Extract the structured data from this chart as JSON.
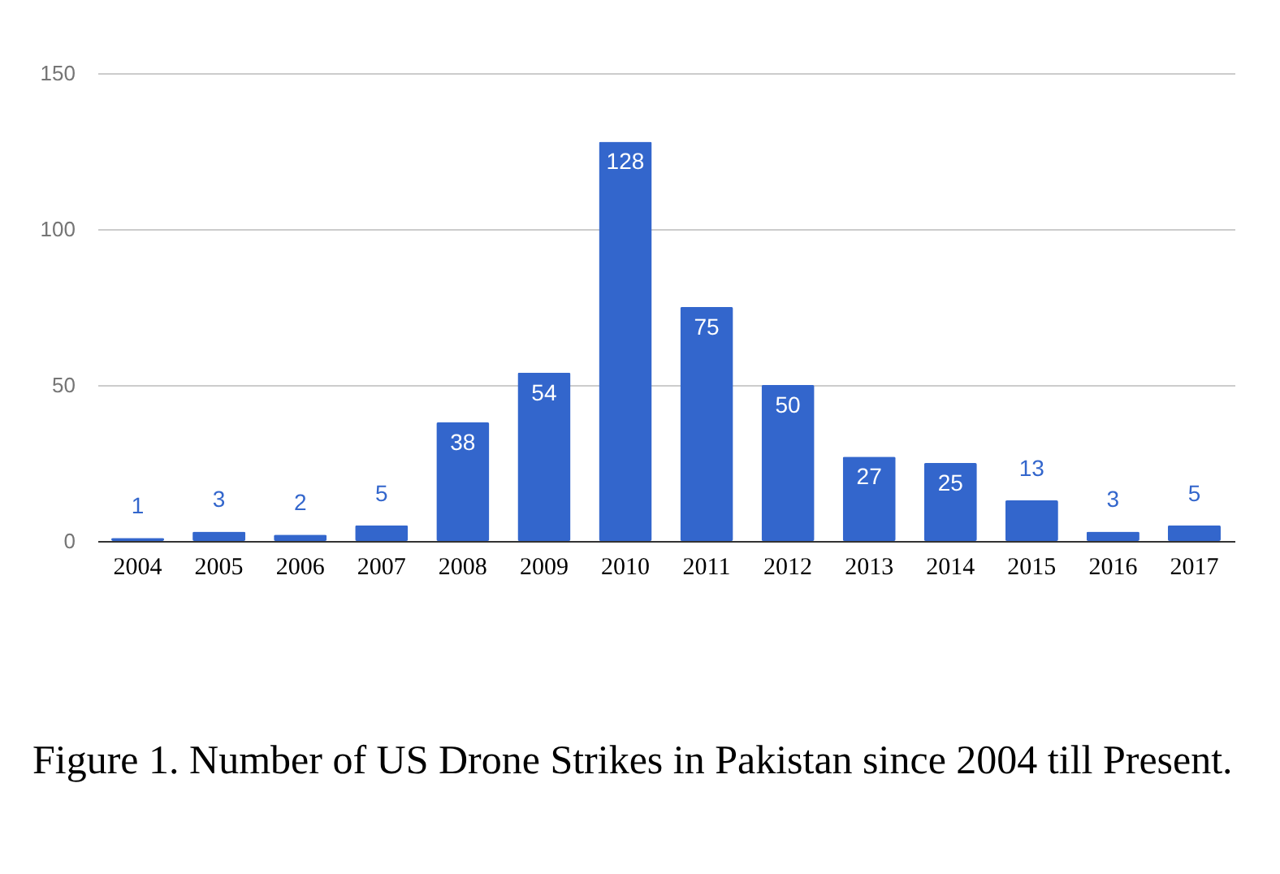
{
  "chart_data": {
    "type": "bar",
    "categories": [
      "2004",
      "2005",
      "2006",
      "2007",
      "2008",
      "2009",
      "2010",
      "2011",
      "2012",
      "2013",
      "2014",
      "2015",
      "2016",
      "2017"
    ],
    "values": [
      1,
      3,
      2,
      5,
      38,
      54,
      128,
      75,
      50,
      27,
      25,
      13,
      3,
      5
    ],
    "color": "#3366cc",
    "ylim": [
      0,
      150
    ],
    "yticks": [
      0,
      50,
      100,
      150
    ],
    "grid": "y",
    "data_labels": true,
    "annotations": [
      "Figure 1. Number of US Drone Strikes in Pakistan since 2004 till Present."
    ]
  }
}
